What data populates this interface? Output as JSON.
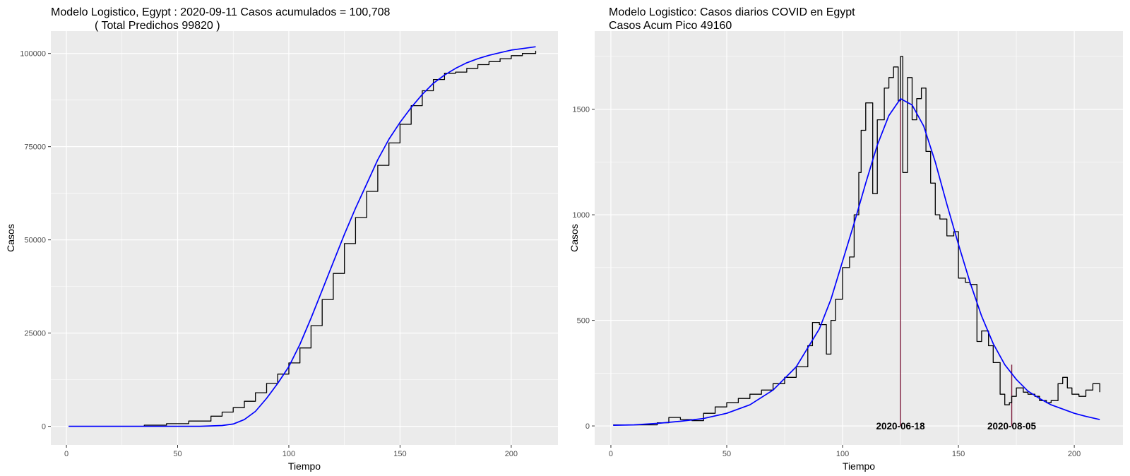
{
  "chart_data": [
    {
      "type": "line",
      "title_line1": "Modelo Logistico, Egypt : 2020-09-11 Casos acumulados =  100,708",
      "title_line2": "( Total Predichos  99820 )",
      "xlabel": "Tiempo",
      "ylabel": "Casos",
      "xlim": [
        -7,
        221
      ],
      "ylim": [
        -5000,
        106000
      ],
      "xticks": [
        0,
        50,
        100,
        150,
        200
      ],
      "yticks": [
        0,
        25000,
        50000,
        75000,
        100000
      ],
      "grid": true,
      "series": [
        {
          "role": "observed-cumulative",
          "color": "#000000",
          "step": true,
          "x": [
            1,
            35,
            45,
            55,
            65,
            70,
            75,
            80,
            85,
            90,
            95,
            100,
            105,
            110,
            115,
            120,
            125,
            130,
            135,
            140,
            145,
            150,
            155,
            160,
            165,
            170,
            175,
            180,
            185,
            190,
            195,
            200,
            205,
            211
          ],
          "y": [
            0,
            300,
            700,
            1400,
            2700,
            3800,
            5000,
            6700,
            9000,
            11500,
            14000,
            17000,
            21000,
            27000,
            34000,
            41000,
            49000,
            56000,
            63000,
            70000,
            76000,
            81000,
            86000,
            90000,
            93000,
            94700,
            95000,
            96000,
            97000,
            97800,
            98600,
            99400,
            100000,
            100708
          ]
        },
        {
          "role": "logistic-fit-cumulative",
          "color": "#0000ff",
          "step": false,
          "x": [
            1,
            60,
            70,
            75,
            80,
            85,
            90,
            95,
            100,
            105,
            110,
            115,
            120,
            125,
            130,
            135,
            140,
            145,
            150,
            155,
            160,
            165,
            170,
            175,
            180,
            185,
            190,
            195,
            200,
            205,
            211
          ],
          "y": [
            0,
            10,
            200,
            600,
            1800,
            4000,
            7500,
            11500,
            16000,
            22000,
            29000,
            36500,
            44000,
            51500,
            58500,
            65000,
            71500,
            77000,
            81500,
            85500,
            89000,
            92000,
            94200,
            96000,
            97500,
            98600,
            99500,
            100200,
            100900,
            101300,
            101800
          ]
        }
      ]
    },
    {
      "type": "line",
      "title_line1": "Modelo Logistico: Casos diarios COVID en Egypt",
      "title_line2": "Casos Acum Pico 49160",
      "xlabel": "Tiempo",
      "ylabel": "Casos",
      "xlim": [
        -7,
        221
      ],
      "ylim": [
        -90,
        1870
      ],
      "xticks": [
        0,
        50,
        100,
        150,
        200
      ],
      "yticks": [
        0,
        500,
        1000,
        1500
      ],
      "grid": true,
      "series": [
        {
          "role": "observed-daily",
          "color": "#000000",
          "step": true,
          "x": [
            1,
            10,
            20,
            25,
            30,
            35,
            40,
            45,
            50,
            55,
            60,
            65,
            70,
            75,
            80,
            85,
            87,
            90,
            93,
            95,
            97,
            100,
            103,
            105,
            107,
            108,
            110,
            113,
            115,
            118,
            120,
            122,
            124,
            125,
            126,
            128,
            130,
            132,
            134,
            136,
            138,
            140,
            142,
            145,
            148,
            150,
            153,
            155,
            158,
            160,
            163,
            165,
            168,
            170,
            172,
            173,
            175,
            178,
            180,
            183,
            185,
            188,
            190,
            193,
            195,
            197,
            199,
            202,
            205,
            208,
            211
          ],
          "y": [
            5,
            5,
            15,
            40,
            30,
            25,
            60,
            90,
            110,
            130,
            150,
            170,
            200,
            230,
            280,
            380,
            490,
            480,
            340,
            500,
            600,
            750,
            800,
            1000,
            1200,
            1400,
            1530,
            1100,
            1450,
            1600,
            1650,
            1700,
            1540,
            1750,
            1200,
            1650,
            1450,
            1550,
            1600,
            1300,
            1150,
            1000,
            980,
            900,
            920,
            700,
            680,
            670,
            400,
            450,
            380,
            300,
            150,
            100,
            110,
            140,
            180,
            160,
            150,
            140,
            120,
            110,
            120,
            200,
            230,
            180,
            150,
            140,
            170,
            200,
            160
          ]
        },
        {
          "role": "logistic-fit-daily",
          "color": "#0000ff",
          "step": false,
          "x": [
            1,
            10,
            20,
            30,
            40,
            50,
            60,
            70,
            80,
            90,
            95,
            100,
            105,
            110,
            115,
            120,
            125,
            130,
            135,
            140,
            145,
            150,
            155,
            160,
            165,
            170,
            175,
            180,
            185,
            190,
            195,
            200,
            205,
            211
          ],
          "y": [
            3,
            5,
            12,
            22,
            35,
            60,
            100,
            170,
            280,
            460,
            600,
            780,
            960,
            1150,
            1330,
            1470,
            1550,
            1520,
            1420,
            1250,
            1050,
            860,
            680,
            520,
            390,
            290,
            220,
            165,
            130,
            100,
            80,
            60,
            45,
            30
          ]
        }
      ],
      "markers": [
        {
          "x": 125,
          "y_top": 1540,
          "label": "2020-06-18",
          "color": "#7f1f3f"
        },
        {
          "x": 173,
          "y_top": 290,
          "label": "2020-08-05",
          "color": "#7f1f3f"
        }
      ]
    }
  ]
}
